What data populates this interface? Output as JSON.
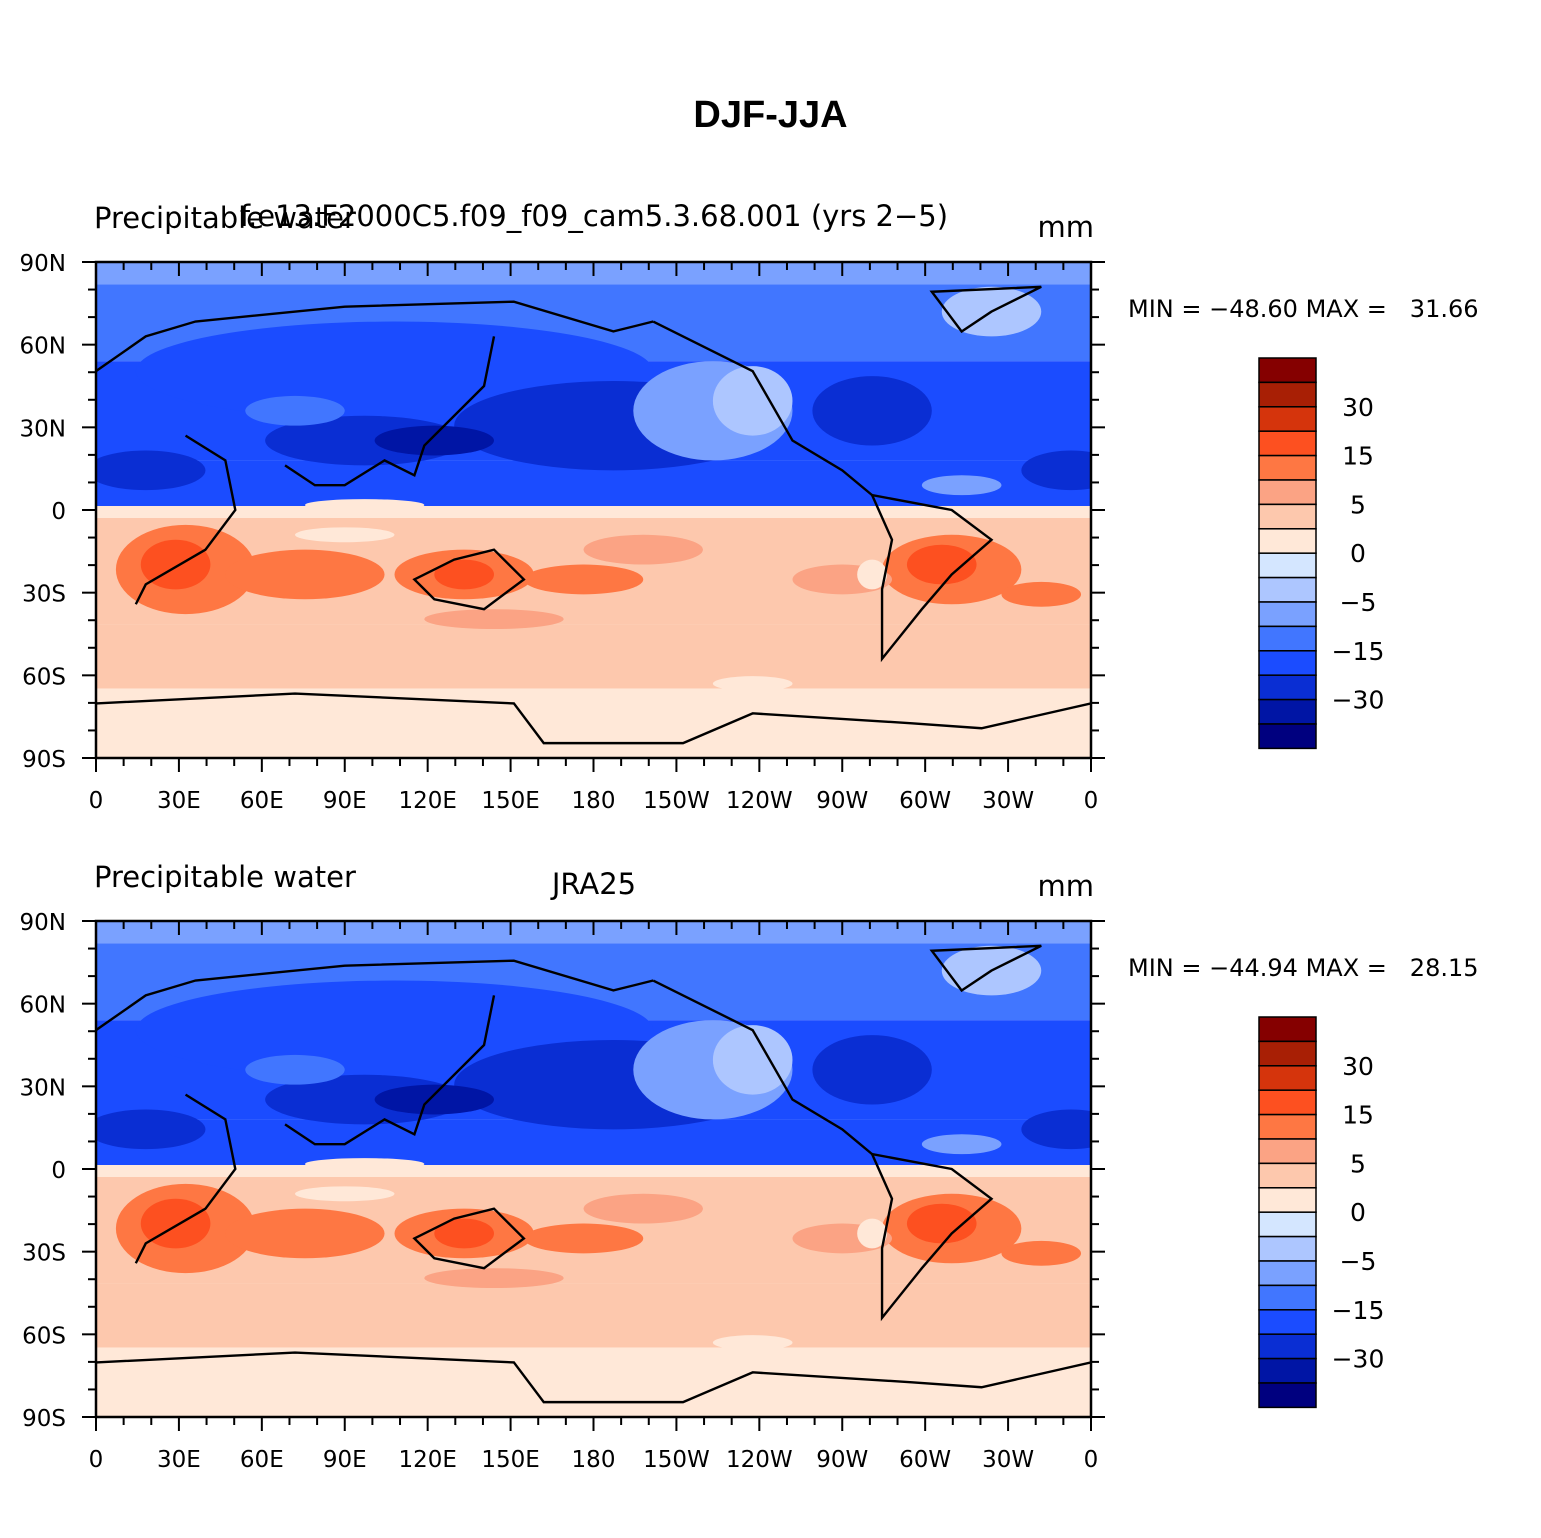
{
  "figure_title": "DJF-JJA",
  "colorbar": {
    "colors": [
      "#00007f",
      "#0015a5",
      "#0a2ed3",
      "#1b4cff",
      "#4176ff",
      "#7aa1ff",
      "#adc6ff",
      "#d4e6ff",
      "#ffe8d8",
      "#fdc8ad",
      "#fba384",
      "#fe7743",
      "#fd5020",
      "#d5340c",
      "#a81f05",
      "#850000"
    ],
    "labels": [
      "−30",
      "−15",
      "−5",
      "0",
      "5",
      "15",
      "30"
    ]
  },
  "lon_ticks": [
    "0",
    "30E",
    "60E",
    "90E",
    "120E",
    "150E",
    "180",
    "150W",
    "120W",
    "90W",
    "60W",
    "30W",
    "0"
  ],
  "lat_ticks": [
    "90N",
    "60N",
    "30N",
    "0",
    "30S",
    "60S",
    "90S"
  ],
  "panels": [
    {
      "left_title": "Precipitable water",
      "center_title": "f.e13.F2000C5.f09_f09_cam5.3.68.001 (yrs 2−5)",
      "units": "mm",
      "min_label": "MIN =",
      "min_value": "−48.60",
      "max_label": "MAX =",
      "max_value": "31.66"
    },
    {
      "left_title": "Precipitable water",
      "center_title": "JRA25",
      "units": "mm",
      "min_label": "MIN =",
      "min_value": "−44.94",
      "max_label": "MAX =",
      "max_value": "28.15"
    }
  ]
}
